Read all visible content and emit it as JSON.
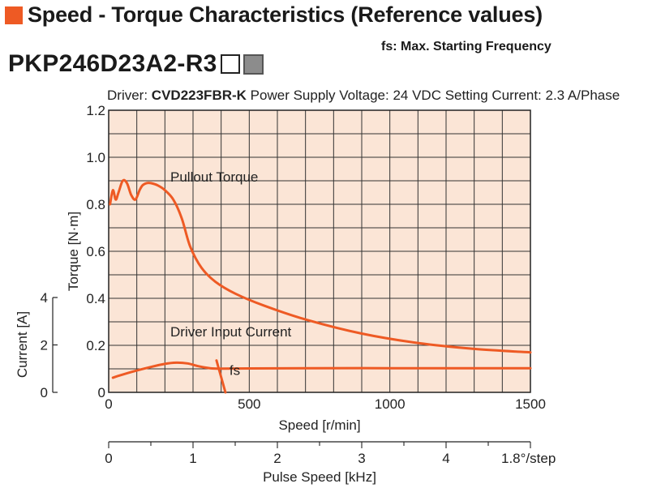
{
  "header": {
    "title": "Speed - Torque Characteristics (Reference values)",
    "accent_color": "#ee5a24",
    "fs_note": "fs: Max. Starting Frequency",
    "model": "PKP246D23A2-R3",
    "model_boxes": [
      "white-square",
      "gray-square"
    ]
  },
  "driver_info": {
    "driver_label": "Driver:",
    "driver_model": "CVD223FBR-K",
    "power_supply": "Power Supply Voltage: 24 VDC",
    "setting_current": "Setting Current: 2.3 A/Phase"
  },
  "chart_data": {
    "type": "line",
    "plot_background": "#fbe5d6",
    "line_color": "#ee5a24",
    "grid": true,
    "xlabel": "Speed [r/min]",
    "xlim": [
      0,
      1500
    ],
    "xticks": [
      "0",
      "500",
      "1000",
      "1500"
    ],
    "ylabel": "Torque [N·m]",
    "ylim": [
      0,
      1.2
    ],
    "yticks": [
      "0",
      "0.2",
      "0.4",
      "0.6",
      "0.8",
      "1.0",
      "1.2"
    ],
    "y2label": "Current [A]",
    "y2lim": [
      0,
      4
    ],
    "y2ticks": [
      "0",
      "2",
      "4"
    ],
    "pulse_axis": {
      "label": "Pulse Speed [kHz]",
      "lim": [
        0,
        5
      ],
      "ticks": [
        "0",
        "1",
        "2",
        "3",
        "4"
      ],
      "step_note": "1.8°/step"
    },
    "series": [
      {
        "name": "Pullout Torque",
        "axis": "torque",
        "x": [
          5,
          15,
          25,
          35,
          50,
          65,
          80,
          95,
          110,
          120,
          135,
          150,
          175,
          200,
          230,
          260,
          290,
          330,
          380,
          450,
          550,
          700,
          900,
          1100,
          1300,
          1500
        ],
        "y": [
          0.8,
          0.86,
          0.82,
          0.85,
          0.9,
          0.89,
          0.84,
          0.82,
          0.86,
          0.88,
          0.89,
          0.89,
          0.88,
          0.86,
          0.82,
          0.74,
          0.62,
          0.53,
          0.47,
          0.42,
          0.37,
          0.31,
          0.25,
          0.21,
          0.185,
          0.17
        ]
      },
      {
        "name": "Driver Input Current",
        "axis": "current",
        "x": [
          15,
          50,
          100,
          150,
          200,
          240,
          280,
          320,
          360,
          400,
          500,
          700,
          1000,
          1300,
          1500
        ],
        "y": [
          0.62,
          0.75,
          0.92,
          1.07,
          1.2,
          1.25,
          1.22,
          1.1,
          1.02,
          1.0,
          1.01,
          1.02,
          1.02,
          1.02,
          1.02
        ]
      }
    ],
    "fs": {
      "label": "fs",
      "x": 395,
      "y": 0.115
    }
  }
}
